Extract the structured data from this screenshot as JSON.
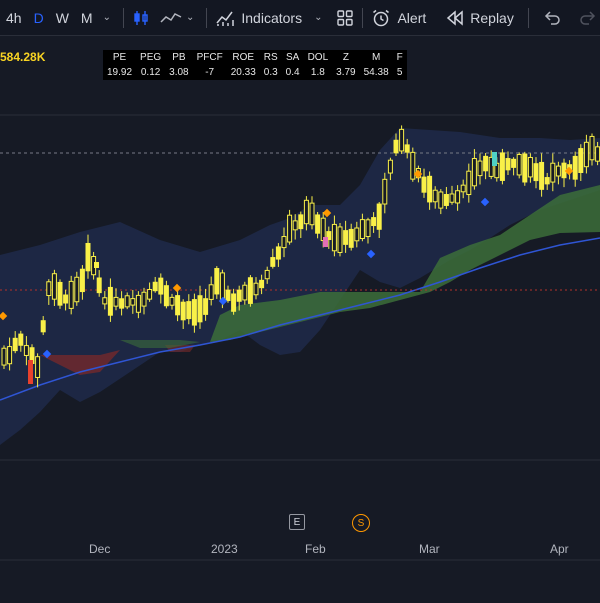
{
  "toolbar": {
    "timeframes": [
      "4h",
      "D",
      "W",
      "M"
    ],
    "active_timeframe": "D",
    "indicators_label": "Indicators",
    "alert_label": "Alert",
    "replay_label": "Replay"
  },
  "price_label": "584.28K",
  "fundamentals": {
    "headers": [
      "PE",
      "PEG",
      "PB",
      "PFCF",
      "ROE",
      "RS",
      "SA",
      "DOL",
      "Z",
      "M",
      "F"
    ],
    "values": [
      "19.92",
      "0.12",
      "3.08",
      "-7",
      "20.33",
      "0.3",
      "0.4",
      "1.8",
      "3.79",
      "54.38",
      "5"
    ]
  },
  "markers": {
    "earnings": "E",
    "split": "S"
  },
  "time_axis": [
    "Dec",
    "2023",
    "Feb",
    "Mar",
    "Apr"
  ],
  "colors": {
    "background": "#161a25",
    "candle": "#f9f048",
    "cloud_fill": "#1f2a4a",
    "kumo_green": "#3c6e3a",
    "kumo_red": "#7a2a2a",
    "ma_line": "#2f55d4",
    "accent": "#2962ff"
  }
}
